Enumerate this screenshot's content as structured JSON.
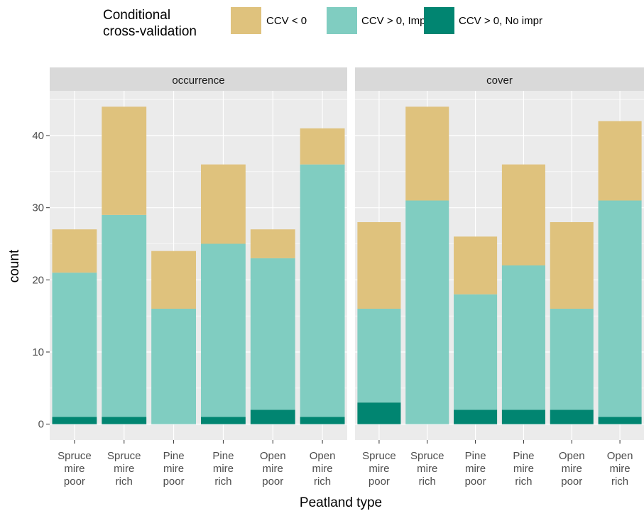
{
  "legend_title": "Conditional\ncross-validation",
  "x_label": "Peatland type",
  "y_label": "count",
  "chart_data": [
    {
      "type": "bar",
      "stacked": true,
      "title": "occurrence",
      "categories": [
        "Spruce\nmire\npoor",
        "Spruce\nmire\nrich",
        "Pine\nmire\npoor",
        "Pine\nmire\nrich",
        "Open\nmire\npoor",
        "Open\nmire\nrich"
      ],
      "series": [
        {
          "name": "CCV < 0",
          "color": "#DFC27D",
          "values": [
            6,
            15,
            8,
            11,
            4,
            5
          ]
        },
        {
          "name": "CCV > 0, Impr",
          "color": "#80CDC1",
          "values": [
            20,
            28,
            16,
            24,
            21,
            35
          ]
        },
        {
          "name": "CCV > 0, No impr",
          "color": "#018571",
          "values": [
            1,
            1,
            0,
            1,
            2,
            1
          ]
        }
      ],
      "ylim": [
        -2.2,
        46.2
      ],
      "yticks": [
        0,
        10,
        20,
        30,
        40
      ],
      "grid": true
    },
    {
      "type": "bar",
      "stacked": true,
      "title": "cover",
      "categories": [
        "Spruce\nmire\npoor",
        "Spruce\nmire\nrich",
        "Pine\nmire\npoor",
        "Pine\nmire\nrich",
        "Open\nmire\npoor",
        "Open\nmire\nrich"
      ],
      "series": [
        {
          "name": "CCV < 0",
          "color": "#DFC27D",
          "values": [
            12,
            13,
            8,
            14,
            12,
            11
          ]
        },
        {
          "name": "CCV > 0, Impr",
          "color": "#80CDC1",
          "values": [
            13,
            31,
            16,
            20,
            14,
            30
          ]
        },
        {
          "name": "CCV > 0, No impr",
          "color": "#018571",
          "values": [
            3,
            0,
            2,
            2,
            2,
            1
          ]
        }
      ],
      "ylim": [
        -2.2,
        46.2
      ],
      "yticks": [
        0,
        10,
        20,
        30,
        40
      ],
      "grid": true
    }
  ]
}
